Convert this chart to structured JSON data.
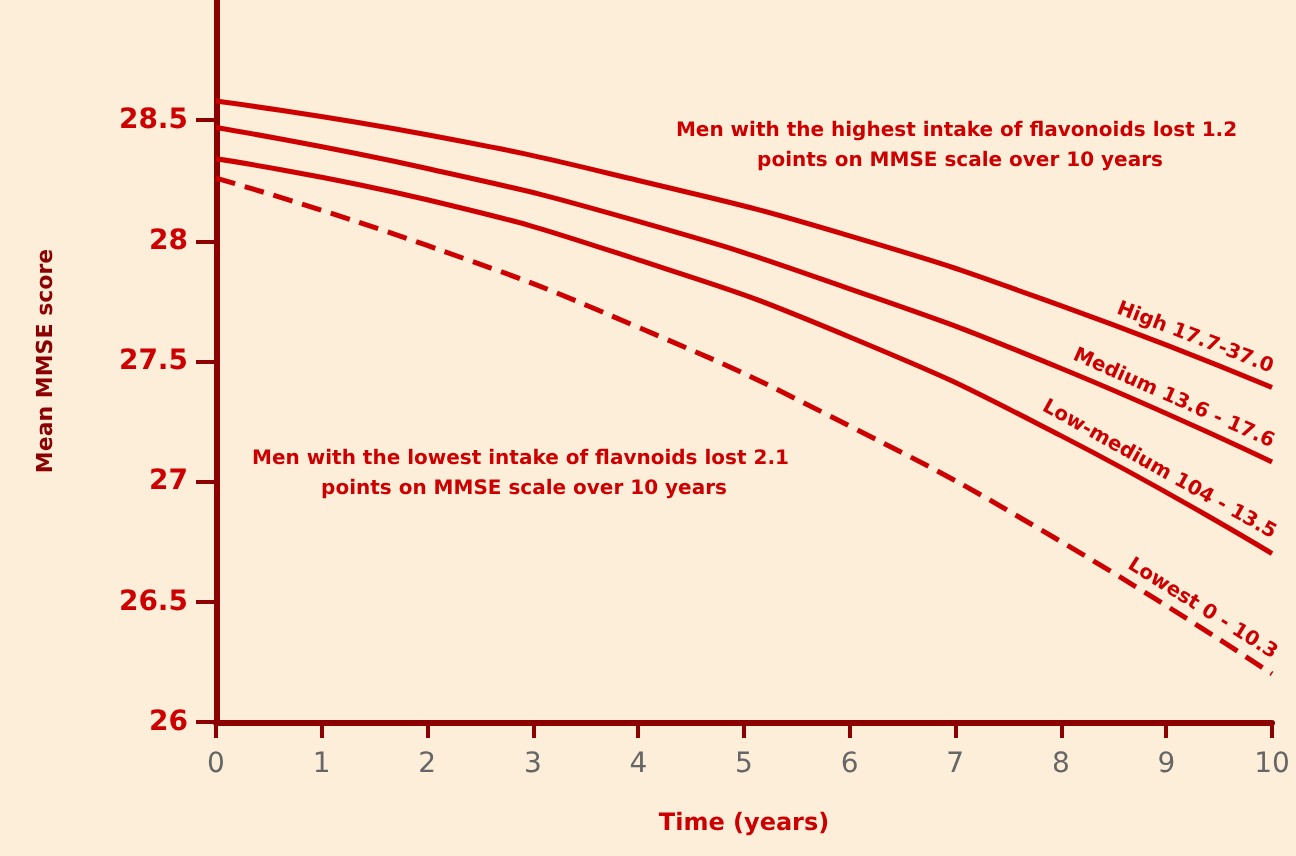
{
  "chart_data": {
    "type": "line",
    "xlabel": "Time (years)",
    "ylabel": "Mean MMSE score",
    "x": [
      0,
      2,
      4,
      6,
      8,
      10
    ],
    "series": [
      {
        "name": "High 17.7-37.0",
        "color": "#cc0000",
        "values": [
          28.58,
          28.44,
          28.25,
          28.02,
          27.73,
          27.39
        ]
      },
      {
        "name": "Medium 13.6 - 17.6",
        "color": "#cc0000",
        "values": [
          28.47,
          28.3,
          28.08,
          27.8,
          27.47,
          27.08
        ]
      },
      {
        "name": "Low-medium 104 - 13.5",
        "color": "#cc0000",
        "values": [
          28.34,
          28.17,
          27.92,
          27.6,
          27.19,
          26.7
        ]
      },
      {
        "name": "Lowest 0 - 10.3",
        "color": "#cc0000",
        "line_style": "dashed",
        "values": [
          28.26,
          27.98,
          27.64,
          27.23,
          26.75,
          26.2
        ]
      }
    ],
    "xlim": [
      0,
      10
    ],
    "xticks": [
      0,
      1,
      2,
      3,
      4,
      5,
      6,
      7,
      8,
      9,
      10
    ],
    "ylim": [
      26,
      29
    ],
    "yticks": [
      26,
      26.5,
      27,
      27.5,
      28,
      28.5
    ],
    "annotations": [
      "Men with the highest intake of flavonoids lost 1.2 points on MMSE scale over 10 years",
      "Men with the lowest intake of flavnoids lost 2.1 points on MMSE scale over 10 years"
    ],
    "grid": false,
    "legend": false,
    "marker": "none",
    "line_style": "solid"
  }
}
